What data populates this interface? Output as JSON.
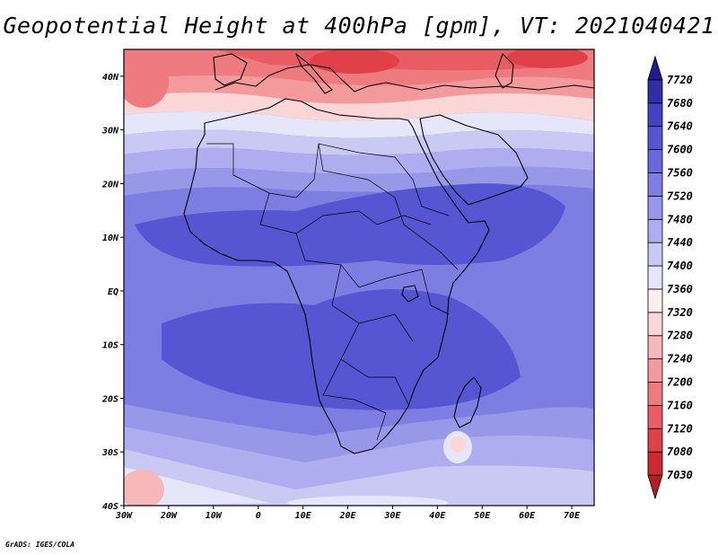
{
  "title": "Geopotential Height at 400hPa [gpm], VT: 2021040421",
  "credit": "GrADS: IGES/COLA",
  "map": {
    "lon_range": [
      -30,
      75
    ],
    "lat_range": [
      -40,
      45
    ],
    "lon_ticks": [
      {
        "value": -30,
        "label": "30W"
      },
      {
        "value": -20,
        "label": "20W"
      },
      {
        "value": -10,
        "label": "10W"
      },
      {
        "value": 0,
        "label": "0"
      },
      {
        "value": 10,
        "label": "10E"
      },
      {
        "value": 20,
        "label": "20E"
      },
      {
        "value": 30,
        "label": "30E"
      },
      {
        "value": 40,
        "label": "40E"
      },
      {
        "value": 50,
        "label": "50E"
      },
      {
        "value": 60,
        "label": "60E"
      },
      {
        "value": 70,
        "label": "70E"
      }
    ],
    "lat_ticks": [
      {
        "value": 40,
        "label": "40N"
      },
      {
        "value": 30,
        "label": "30N"
      },
      {
        "value": 20,
        "label": "20N"
      },
      {
        "value": 10,
        "label": "10N"
      },
      {
        "value": 0,
        "label": "EQ"
      },
      {
        "value": -10,
        "label": "10S"
      },
      {
        "value": -20,
        "label": "20S"
      },
      {
        "value": -30,
        "label": "30S"
      },
      {
        "value": -40,
        "label": "40S"
      }
    ]
  },
  "colorbar": {
    "levels": [
      7030,
      7080,
      7120,
      7160,
      7200,
      7240,
      7280,
      7320,
      7360,
      7400,
      7440,
      7480,
      7520,
      7560,
      7600,
      7640,
      7680,
      7720
    ],
    "colors": [
      "#b41e23",
      "#cc2a2e",
      "#e04048",
      "#e85d64",
      "#ee7b80",
      "#f29a9c",
      "#f6b8b9",
      "#fad7d6",
      "#fbeeed",
      "#e6e6fa",
      "#c9c9f4",
      "#aeadef",
      "#9898e9",
      "#7e7de2",
      "#6a68dc",
      "#5655d2",
      "#4142c4",
      "#2f2fa8",
      "#221c8e"
    ]
  }
}
